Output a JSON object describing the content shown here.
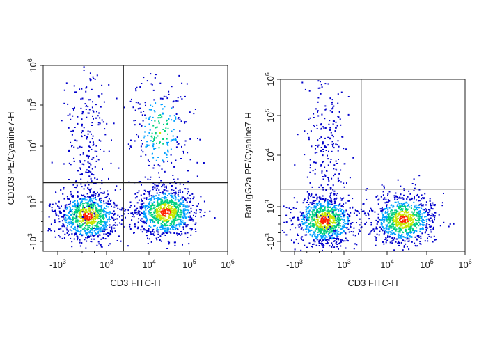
{
  "chart_data": [
    {
      "type": "scatter",
      "style": "flow-cytometry-density",
      "xlabel": "CD3 FITC-H",
      "ylabel": "CD103 PE/Cyanine7-H",
      "x_scale": "biexponential",
      "y_scale": "biexponential",
      "xlim": [
        -2000,
        1000000
      ],
      "ylim": [
        -2000,
        1000000
      ],
      "x_ticks": [
        {
          "value": -1000,
          "base": "-10",
          "exp": "3"
        },
        {
          "value": 1000,
          "base": "10",
          "exp": "3"
        },
        {
          "value": 10000,
          "base": "10",
          "exp": "4"
        },
        {
          "value": 100000,
          "base": "10",
          "exp": "5"
        },
        {
          "value": 1000000,
          "base": "10",
          "exp": "6"
        }
      ],
      "y_ticks": [
        {
          "value": -1000,
          "base": "-10",
          "exp": "3"
        },
        {
          "value": 1000,
          "base": "10",
          "exp": "3"
        },
        {
          "value": 10000,
          "base": "10",
          "exp": "4"
        },
        {
          "value": 100000,
          "base": "10",
          "exp": "5"
        },
        {
          "value": 1000000,
          "base": "10",
          "exp": "6"
        }
      ],
      "quadrant_gate": {
        "x": 2500,
        "y": 2200
      },
      "populations": [
        {
          "x_center": 200,
          "y_center": 300,
          "relative_density": "high"
        },
        {
          "x_center": 25000,
          "y_center": 500,
          "relative_density": "high"
        },
        {
          "x_center": 18000,
          "y_center": 25000,
          "relative_density": "medium"
        },
        {
          "x_center": 200,
          "y_center": 15000,
          "relative_density": "low"
        }
      ]
    },
    {
      "type": "scatter",
      "style": "flow-cytometry-density",
      "xlabel": "CD3 FITC-H",
      "ylabel": "Rat IgG2a PE/Cyanine7-H",
      "x_scale": "biexponential",
      "y_scale": "biexponential",
      "xlim": [
        -2000,
        1000000
      ],
      "ylim": [
        -2000,
        1000000
      ],
      "x_ticks": [
        {
          "value": -1000,
          "base": "-10",
          "exp": "3"
        },
        {
          "value": 1000,
          "base": "10",
          "exp": "3"
        },
        {
          "value": 10000,
          "base": "10",
          "exp": "4"
        },
        {
          "value": 100000,
          "base": "10",
          "exp": "5"
        },
        {
          "value": 1000000,
          "base": "10",
          "exp": "6"
        }
      ],
      "y_ticks": [
        {
          "value": -1000,
          "base": "-10",
          "exp": "3"
        },
        {
          "value": 1000,
          "base": "10",
          "exp": "3"
        },
        {
          "value": 10000,
          "base": "10",
          "exp": "4"
        },
        {
          "value": 100000,
          "base": "10",
          "exp": "5"
        },
        {
          "value": 1000000,
          "base": "10",
          "exp": "6"
        }
      ],
      "quadrant_gate": {
        "x": 2500,
        "y": 2200
      },
      "populations": [
        {
          "x_center": 200,
          "y_center": 250,
          "relative_density": "high"
        },
        {
          "x_center": 25000,
          "y_center": 300,
          "relative_density": "high"
        },
        {
          "x_center": 300,
          "y_center": 15000,
          "relative_density": "low"
        }
      ]
    }
  ],
  "colors": {
    "density_low": "#0000cc",
    "density_mid_low": "#00a0ff",
    "density_mid": "#00d080",
    "density_mid_high": "#c8e600",
    "density_high": "#ff2000",
    "gate_line": "#222222",
    "frame": "#222222"
  }
}
